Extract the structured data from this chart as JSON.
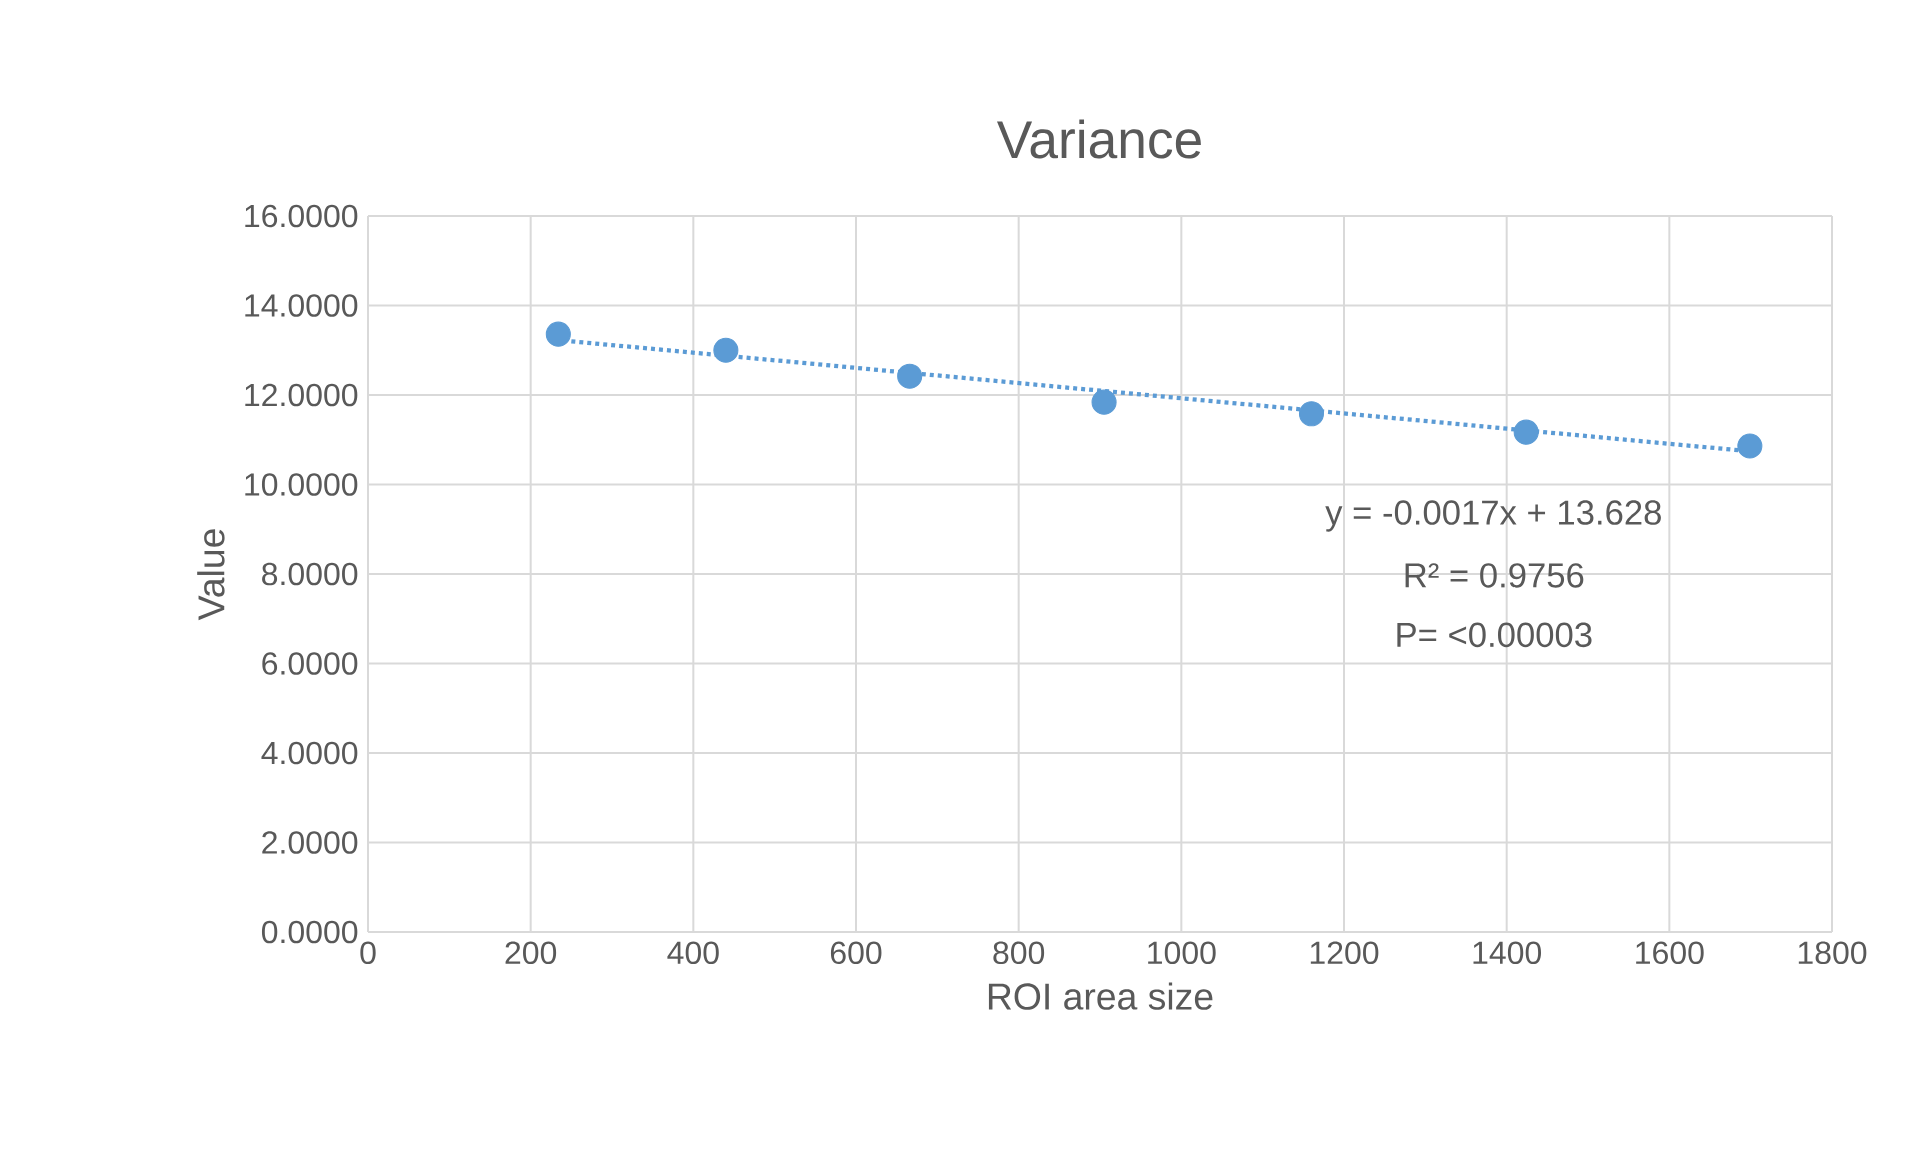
{
  "chart_data": {
    "type": "scatter",
    "title": "Variance",
    "xlabel": "ROI area size",
    "ylabel": "Value",
    "xlim": [
      0,
      1800
    ],
    "xticks": [
      0,
      200,
      400,
      600,
      800,
      1000,
      1200,
      1400,
      1600,
      1800
    ],
    "ylim": [
      0,
      16
    ],
    "yticks": [
      {
        "value": 0,
        "label": "0.0000"
      },
      {
        "value": 2,
        "label": "2.0000"
      },
      {
        "value": 4,
        "label": "4.0000"
      },
      {
        "value": 6,
        "label": "6.0000"
      },
      {
        "value": 8,
        "label": "8.0000"
      },
      {
        "value": 10,
        "label": "10.0000"
      },
      {
        "value": 12,
        "label": "12.0000"
      },
      {
        "value": 14,
        "label": "14.0000"
      },
      {
        "value": 16,
        "label": "16.0000"
      }
    ],
    "grid": true,
    "series": [
      {
        "color": "#5b9bd5",
        "marker": "circle",
        "x": [
          234,
          440,
          666,
          905,
          1160,
          1424,
          1699
        ],
        "values": [
          13.36,
          13.0,
          12.42,
          11.84,
          11.58,
          11.17,
          10.86
        ]
      },
      {
        "type": "line",
        "color": "#5b9bd5",
        "marker": "none",
        "line_style": "dotted",
        "x": [
          250,
          1700
        ],
        "values": [
          13.2,
          10.74
        ]
      }
    ],
    "annotations": [
      "y = -0.0017x + 13.628",
      "R² = 0.9756",
      "P= <0.00003"
    ]
  }
}
